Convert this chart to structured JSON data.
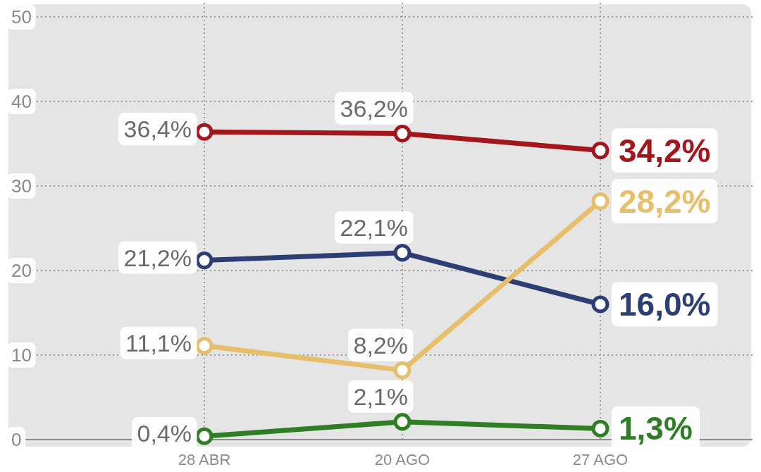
{
  "chart_data": {
    "type": "line",
    "categories": [
      "28 ABR",
      "20 AGO",
      "27 AGO"
    ],
    "ylim": [
      0,
      50
    ],
    "yticks": [
      0,
      10,
      20,
      30,
      40,
      50
    ],
    "grid": true,
    "marker": "circle",
    "line_style": "solid",
    "series": [
      {
        "color": "#a3171c",
        "values": [
          36.4,
          36.2,
          34.2
        ],
        "value_labels": [
          "36,4%",
          "36,2%",
          "34,2%"
        ]
      },
      {
        "color": "#2c3e74",
        "values": [
          21.2,
          22.1,
          16.0
        ],
        "value_labels": [
          "21,2%",
          "22,1%",
          "16,0%"
        ]
      },
      {
        "color": "#e7bf6a",
        "values": [
          11.1,
          8.2,
          28.2
        ],
        "value_labels": [
          "11,1%",
          "8,2%",
          "28,2%"
        ]
      },
      {
        "color": "#2f7d24",
        "values": [
          0.4,
          2.1,
          1.3
        ],
        "value_labels": [
          "0,4%",
          "2,1%",
          "1,3%"
        ]
      }
    ]
  }
}
